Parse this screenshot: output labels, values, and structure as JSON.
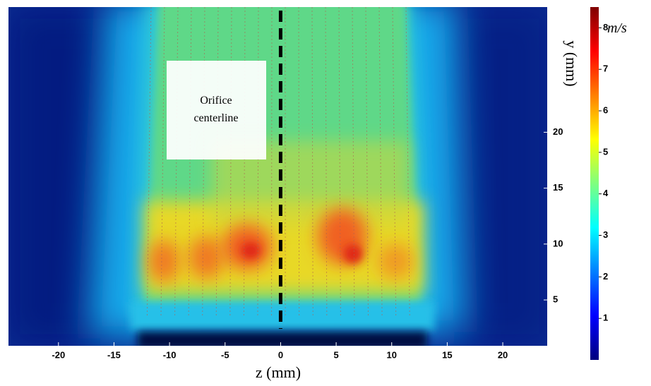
{
  "chart_data": {
    "type": "heatmap",
    "xlabel": "z (mm)",
    "ylabel": "y (mm)",
    "colorbar_label": "m/s",
    "annotation": [
      "Orifice",
      "centerline"
    ],
    "centerline_z": 0,
    "xlim": [
      -24.5,
      24
    ],
    "xticks": [
      -20,
      -15,
      -10,
      -5,
      0,
      5,
      10,
      15,
      20
    ],
    "ylim": [
      0.9,
      31.2
    ],
    "yticks": [
      5,
      10,
      15,
      20
    ],
    "clim": [
      0,
      8.5
    ],
    "cticks": [
      1,
      2,
      3,
      4,
      5,
      6,
      7,
      8
    ],
    "colormap": [
      "#00007f",
      "#0000ff",
      "#007fff",
      "#00ffff",
      "#7fff7f",
      "#ffff00",
      "#ff7f00",
      "#ff0000",
      "#7f0000"
    ]
  }
}
